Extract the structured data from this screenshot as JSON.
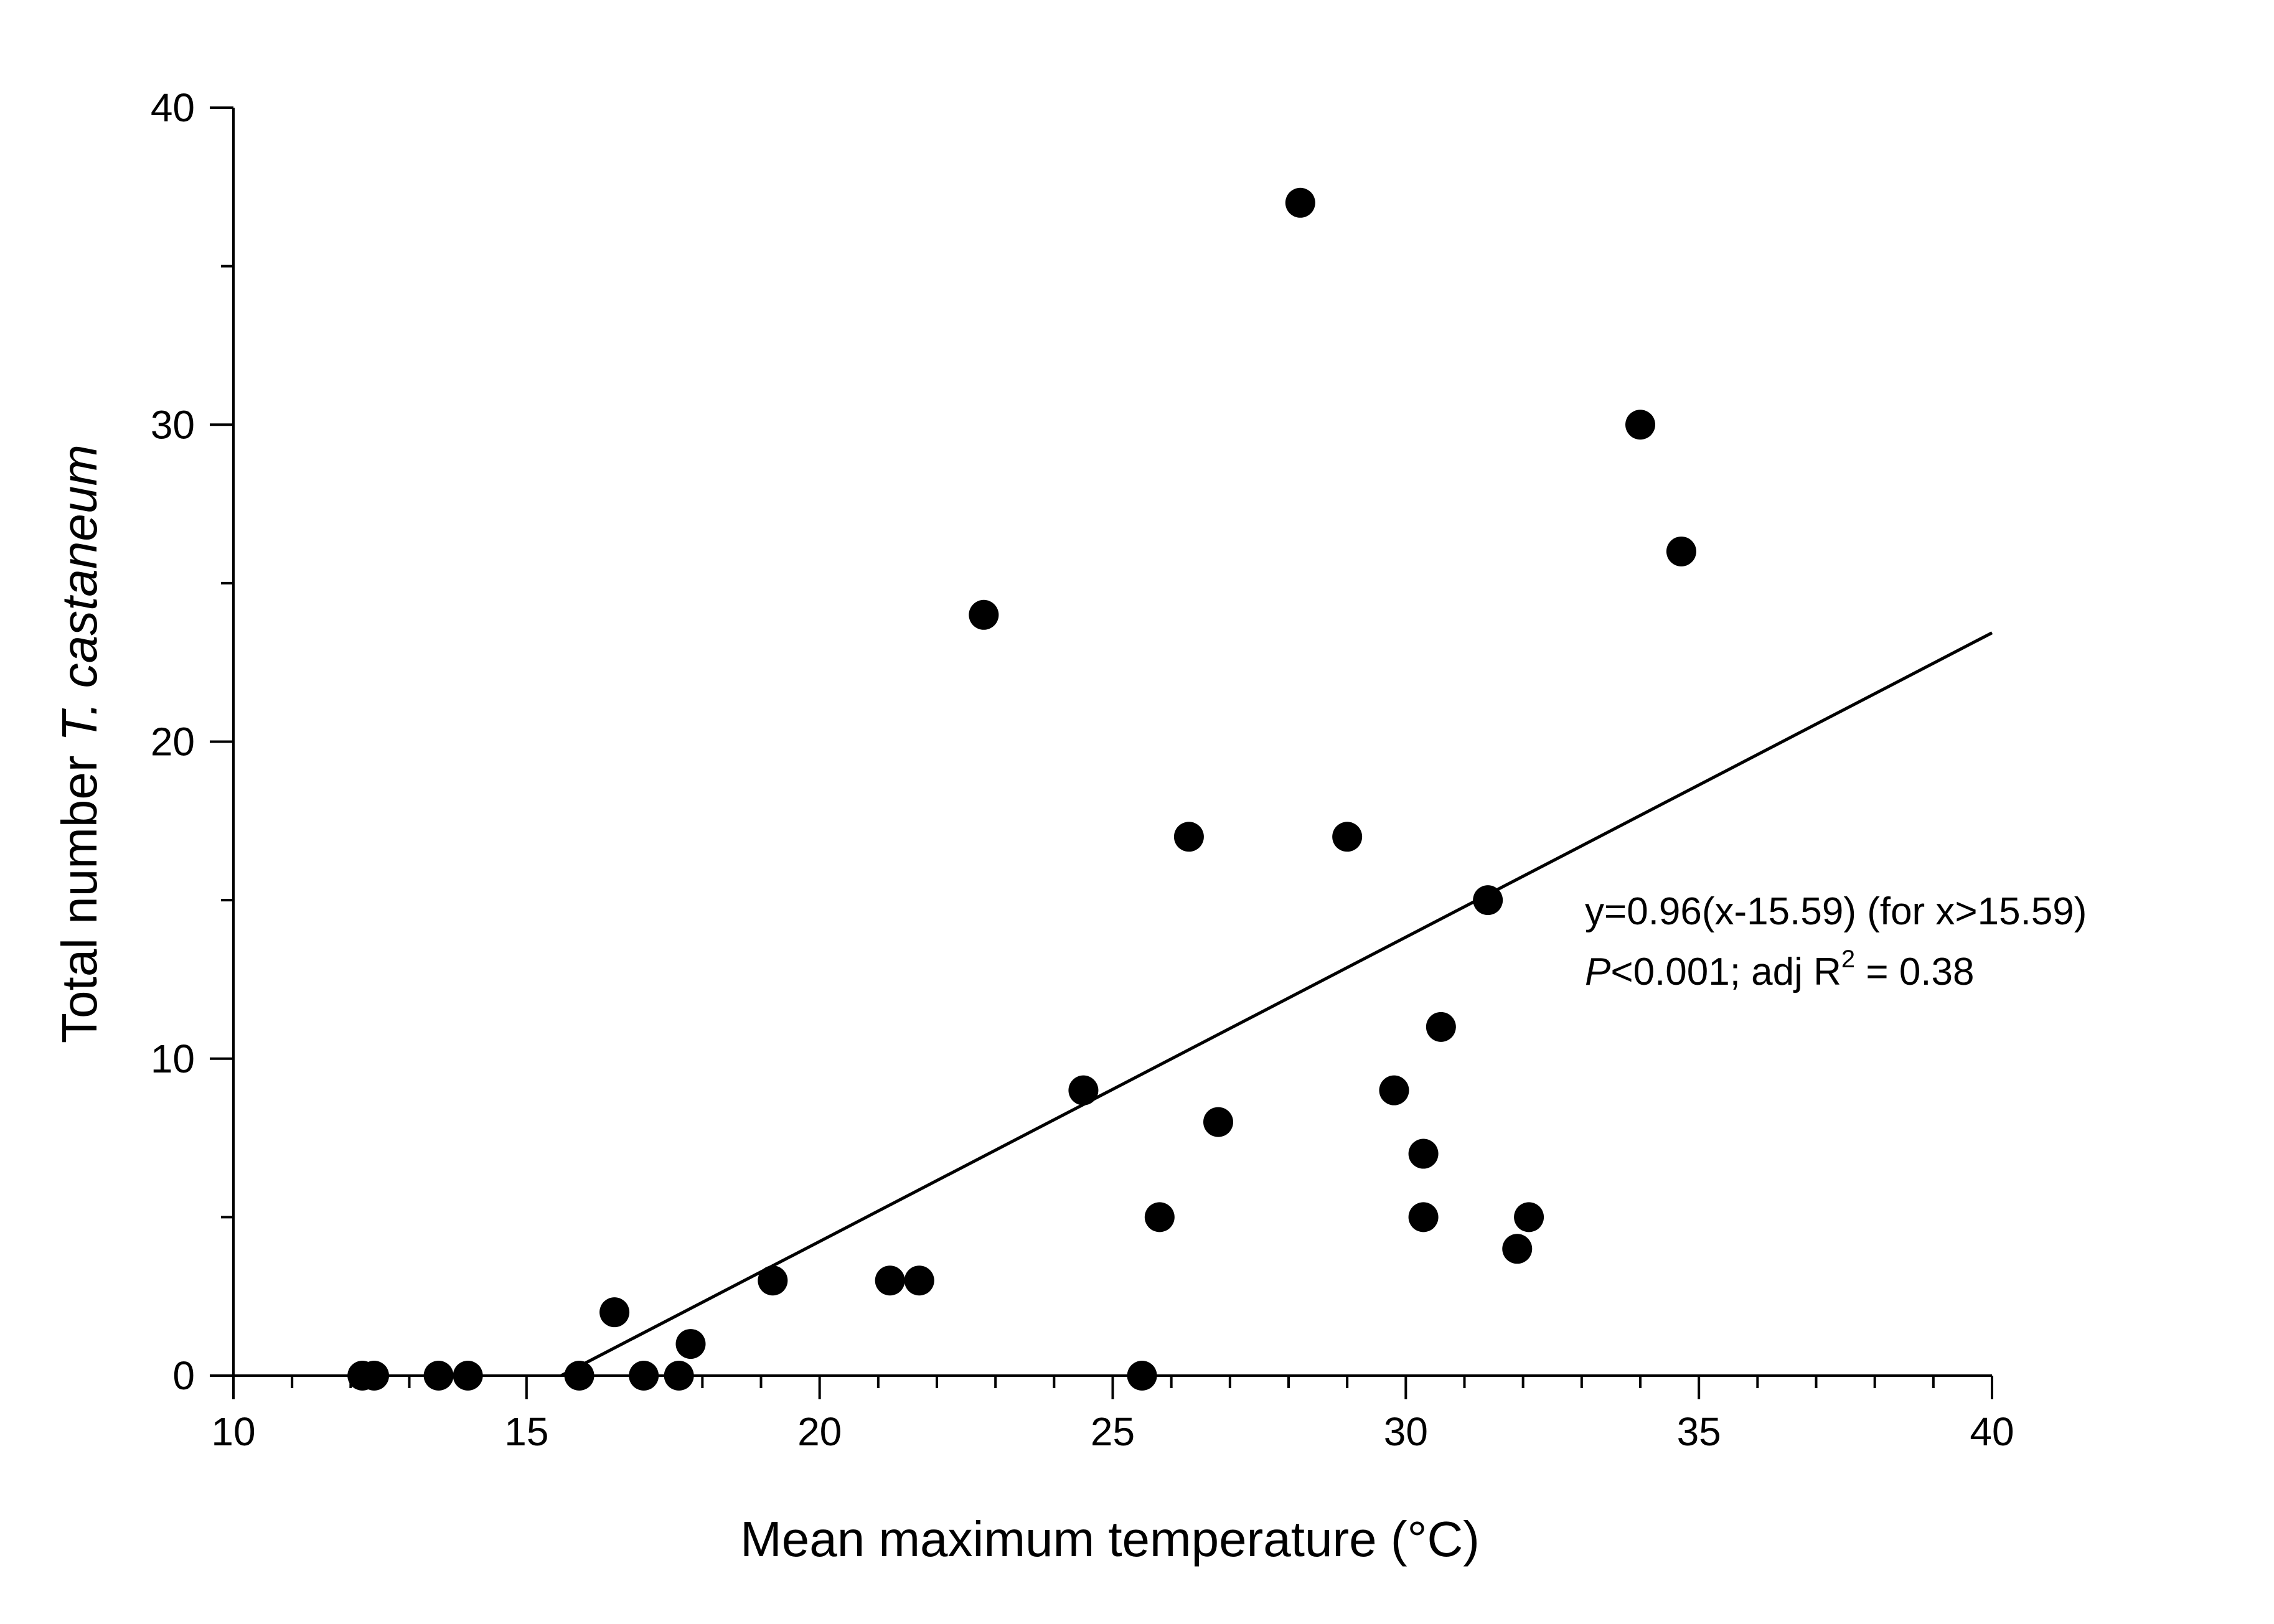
{
  "chart_data": {
    "type": "scatter",
    "title": "",
    "xlabel": "Mean maximum temperature (°C)",
    "ylabel": {
      "prefix": "Total number ",
      "species": "T. castaneum"
    },
    "xlim": [
      10,
      40
    ],
    "ylim": [
      0,
      40
    ],
    "x_ticks": [
      10,
      15,
      20,
      25,
      30,
      35,
      40
    ],
    "x_minor_step": 1,
    "y_ticks": [
      0,
      10,
      20,
      30,
      40
    ],
    "y_minor_step": 5,
    "grid": false,
    "points": [
      {
        "x": 12.2,
        "y": 0
      },
      {
        "x": 12.4,
        "y": 0
      },
      {
        "x": 13.5,
        "y": 0
      },
      {
        "x": 14.0,
        "y": 0
      },
      {
        "x": 15.9,
        "y": 0
      },
      {
        "x": 16.5,
        "y": 2
      },
      {
        "x": 17.0,
        "y": 0
      },
      {
        "x": 17.6,
        "y": 0
      },
      {
        "x": 17.8,
        "y": 1
      },
      {
        "x": 19.2,
        "y": 3
      },
      {
        "x": 21.2,
        "y": 3
      },
      {
        "x": 21.7,
        "y": 3
      },
      {
        "x": 22.8,
        "y": 24
      },
      {
        "x": 24.5,
        "y": 9
      },
      {
        "x": 25.5,
        "y": 0
      },
      {
        "x": 25.8,
        "y": 5
      },
      {
        "x": 26.3,
        "y": 17
      },
      {
        "x": 26.8,
        "y": 8
      },
      {
        "x": 28.2,
        "y": 37
      },
      {
        "x": 29.0,
        "y": 17
      },
      {
        "x": 29.8,
        "y": 9
      },
      {
        "x": 30.3,
        "y": 7
      },
      {
        "x": 30.3,
        "y": 5
      },
      {
        "x": 30.6,
        "y": 11
      },
      {
        "x": 31.4,
        "y": 15
      },
      {
        "x": 31.9,
        "y": 4
      },
      {
        "x": 32.1,
        "y": 5
      },
      {
        "x": 34.0,
        "y": 30
      },
      {
        "x": 34.7,
        "y": 26
      }
    ],
    "fit": {
      "slope": 0.96,
      "threshold": 15.59,
      "x_range": [
        15.59,
        40
      ]
    },
    "annotation": {
      "equation": "y=0.96(x-15.59) (for x>15.59)",
      "p_symbol": "P",
      "stats_text": "<0.001; adj R",
      "superscript": "2",
      "r2_value": " = 0.38"
    }
  }
}
